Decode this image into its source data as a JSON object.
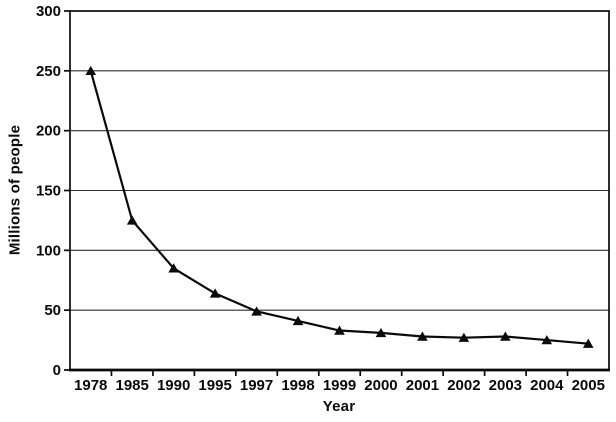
{
  "chart_data": {
    "type": "line",
    "title": "",
    "xlabel": "Year",
    "ylabel": "Millions of people",
    "categories": [
      "1978",
      "1985",
      "1990",
      "1995",
      "1997",
      "1998",
      "1999",
      "2000",
      "2001",
      "2002",
      "2003",
      "2004",
      "2005"
    ],
    "series": [
      {
        "name": "Millions of people",
        "values": [
          250,
          125,
          85,
          64,
          49,
          41,
          33,
          31,
          28,
          27,
          28,
          25,
          22
        ]
      }
    ],
    "ylim": [
      0,
      300
    ],
    "ytick_interval": 50,
    "yticks": [
      0,
      50,
      100,
      150,
      200,
      250,
      300
    ],
    "grid": "horizontal",
    "legend_position": "none",
    "marker": "filled-triangle",
    "line_color": "#0a0a0a",
    "grid_color": "#2e2e2e",
    "frame_color": "#0a0a0a",
    "text_color": "#0a0a0a",
    "background_color": "#ffffff"
  }
}
